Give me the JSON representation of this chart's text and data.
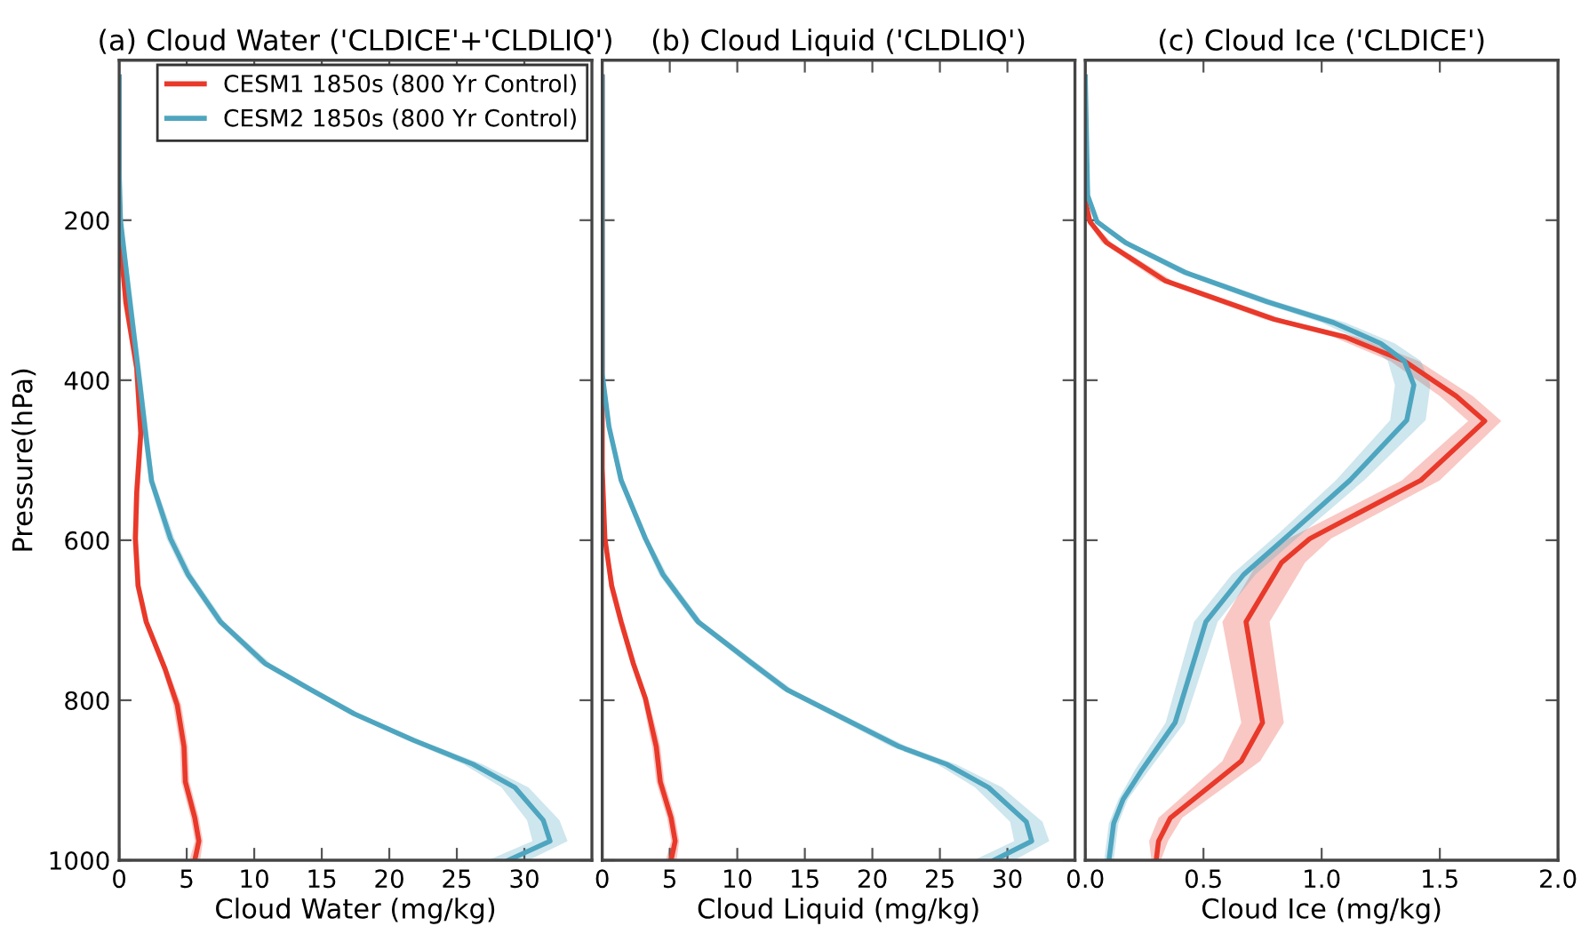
{
  "chart_data": [
    {
      "type": "line",
      "title": "(a) Cloud Water ('CLDICE'+'CLDLIQ')",
      "xlabel": "Cloud Water (mg/kg)",
      "ylabel": "Pressure(hPa)",
      "orientation": "horizontal",
      "xlim": [
        0,
        35
      ],
      "xticks": [
        0,
        5,
        10,
        15,
        20,
        25,
        30
      ],
      "ylim": [
        1000,
        0
      ],
      "yticks": [
        200,
        400,
        600,
        800,
        1000
      ],
      "grid": false,
      "legend": "top right",
      "series": [
        {
          "name": "CESM1 1850s (800 Yr Control)",
          "color": "#e8392a",
          "x": [
            21,
            214,
            303,
            385,
            466,
            540,
            598,
            657,
            702,
            761,
            806,
            858,
            902,
            947,
            976,
            1000
          ],
          "values": [
            0,
            0,
            0.5,
            1.3,
            1.6,
            1.3,
            1.2,
            1.4,
            2.0,
            3.4,
            4.3,
            4.8,
            4.9,
            5.6,
            5.9,
            5.6
          ],
          "lower": [
            0,
            0,
            0.3,
            1.1,
            1.4,
            1.1,
            1.0,
            1.2,
            1.8,
            3.2,
            4.0,
            4.5,
            4.6,
            5.3,
            5.6,
            5.2
          ],
          "upper": [
            0,
            0,
            0.7,
            1.5,
            1.8,
            1.5,
            1.4,
            1.6,
            2.2,
            3.6,
            4.6,
            5.1,
            5.2,
            5.9,
            6.2,
            6.0
          ]
        },
        {
          "name": "CESM2 1850s (800 Yr Control)",
          "color": "#4ea5bf",
          "x": [
            21,
            139,
            200,
            288,
            400,
            472,
            526,
            598,
            643,
            702,
            754,
            784,
            817,
            850,
            880,
            909,
            950,
            976,
            1000
          ],
          "values": [
            0,
            0,
            0.1,
            0.7,
            1.5,
            2.0,
            2.4,
            3.8,
            5.1,
            7.5,
            10.8,
            13.9,
            17.4,
            21.8,
            26.2,
            29.3,
            31.4,
            31.9,
            28.8
          ],
          "lower": [
            0,
            0,
            0,
            0.5,
            1.3,
            1.8,
            2.2,
            3.5,
            4.8,
            7.2,
            10.4,
            13.5,
            17.0,
            21.3,
            25.5,
            28.3,
            30.2,
            30.6,
            27.3
          ],
          "upper": [
            0,
            0,
            0.2,
            0.9,
            1.7,
            2.2,
            2.6,
            4.1,
            5.4,
            7.8,
            11.2,
            14.3,
            17.8,
            22.3,
            26.9,
            30.3,
            32.6,
            33.2,
            30.3
          ]
        }
      ]
    },
    {
      "type": "line",
      "title": "(b) Cloud Liquid ('CLDLIQ')",
      "xlabel": "Cloud Liquid (mg/kg)",
      "orientation": "horizontal",
      "xlim": [
        0,
        35
      ],
      "xticks": [
        0,
        5,
        10,
        15,
        20,
        25,
        30
      ],
      "ylim": [
        1000,
        0
      ],
      "yticks": [
        200,
        400,
        600,
        800,
        1000
      ],
      "grid": false,
      "tick_labels": "x",
      "series": [
        {
          "color": "#e8392a",
          "x": [
            21,
            510,
            598,
            657,
            702,
            754,
            798,
            843,
            858,
            902,
            947,
            976,
            1000
          ],
          "values": [
            0,
            0,
            0.2,
            0.7,
            1.4,
            2.3,
            3.2,
            3.8,
            4.0,
            4.3,
            5.1,
            5.4,
            5.1
          ],
          "lower": [
            0,
            0,
            0.1,
            0.5,
            1.2,
            2.1,
            3.0,
            3.5,
            3.7,
            4.0,
            4.8,
            5.1,
            4.7
          ],
          "upper": [
            0,
            0,
            0.3,
            0.9,
            1.6,
            2.5,
            3.4,
            4.1,
            4.3,
            4.6,
            5.4,
            5.7,
            5.5
          ]
        },
        {
          "color": "#4ea5bf",
          "x": [
            21,
            392,
            458,
            525,
            598,
            643,
            702,
            754,
            787,
            828,
            858,
            880,
            909,
            952,
            976,
            1000
          ],
          "values": [
            0,
            0,
            0.5,
            1.4,
            3.2,
            4.5,
            7.1,
            11.1,
            13.7,
            18.5,
            22.0,
            25.5,
            28.6,
            31.4,
            31.8,
            29.0
          ],
          "lower": [
            0,
            0,
            0.4,
            1.2,
            3.0,
            4.2,
            6.8,
            10.7,
            13.3,
            18.0,
            21.4,
            24.8,
            27.6,
            30.2,
            30.5,
            27.5
          ],
          "upper": [
            0,
            0,
            0.6,
            1.6,
            3.4,
            4.8,
            7.4,
            11.5,
            14.1,
            19.0,
            22.6,
            26.2,
            29.6,
            32.6,
            33.1,
            30.5
          ]
        }
      ]
    },
    {
      "type": "line",
      "title": "(c) Cloud Ice ('CLDICE')",
      "xlabel": "Cloud Ice (mg/kg)",
      "orientation": "horizontal",
      "xlim": [
        0,
        2.0
      ],
      "xticks": [
        {
          "value": 0,
          "label": "0.0"
        },
        0.5,
        {
          "value": 1,
          "label": "1.0"
        },
        1.5,
        {
          "value": 2,
          "label": "2.0"
        }
      ],
      "ylim": [
        1000,
        0
      ],
      "yticks": [
        200,
        400,
        600,
        800,
        1000
      ],
      "grid": false,
      "tick_labels": "x",
      "series": [
        {
          "color": "#e8392a",
          "x": [
            21,
            176,
            202,
            228,
            276,
            324,
            346,
            376,
            420,
            451,
            525,
            598,
            628,
            702,
            828,
            876,
            947,
            976,
            1000
          ],
          "values": [
            0,
            0,
            0.02,
            0.09,
            0.34,
            0.8,
            1.1,
            1.35,
            1.57,
            1.69,
            1.42,
            0.95,
            0.83,
            0.68,
            0.75,
            0.66,
            0.36,
            0.31,
            0.3
          ],
          "lower": [
            0,
            0,
            0.01,
            0.07,
            0.31,
            0.76,
            1.05,
            1.29,
            1.5,
            1.62,
            1.34,
            0.86,
            0.73,
            0.58,
            0.66,
            0.58,
            0.31,
            0.27,
            0.28
          ],
          "upper": [
            0,
            0,
            0.03,
            0.11,
            0.37,
            0.84,
            1.15,
            1.41,
            1.64,
            1.76,
            1.5,
            1.04,
            0.93,
            0.78,
            0.84,
            0.74,
            0.41,
            0.35,
            0.32
          ]
        },
        {
          "color": "#4ea5bf",
          "x": [
            21,
            169,
            202,
            228,
            265,
            302,
            328,
            354,
            376,
            406,
            450,
            525,
            591,
            643,
            702,
            828,
            887,
            924,
            954,
            1000
          ],
          "values": [
            0,
            0.01,
            0.05,
            0.17,
            0.42,
            0.77,
            1.05,
            1.25,
            1.35,
            1.39,
            1.36,
            1.12,
            0.87,
            0.67,
            0.51,
            0.38,
            0.24,
            0.16,
            0.12,
            0.1
          ],
          "lower": [
            0,
            0,
            0.04,
            0.15,
            0.39,
            0.73,
            1.0,
            1.19,
            1.28,
            1.31,
            1.29,
            1.06,
            0.82,
            0.62,
            0.46,
            0.34,
            0.21,
            0.14,
            0.1,
            0.08
          ],
          "upper": [
            0,
            0.02,
            0.06,
            0.19,
            0.45,
            0.81,
            1.1,
            1.31,
            1.42,
            1.46,
            1.44,
            1.18,
            0.92,
            0.72,
            0.56,
            0.42,
            0.27,
            0.18,
            0.14,
            0.12
          ]
        }
      ]
    }
  ]
}
